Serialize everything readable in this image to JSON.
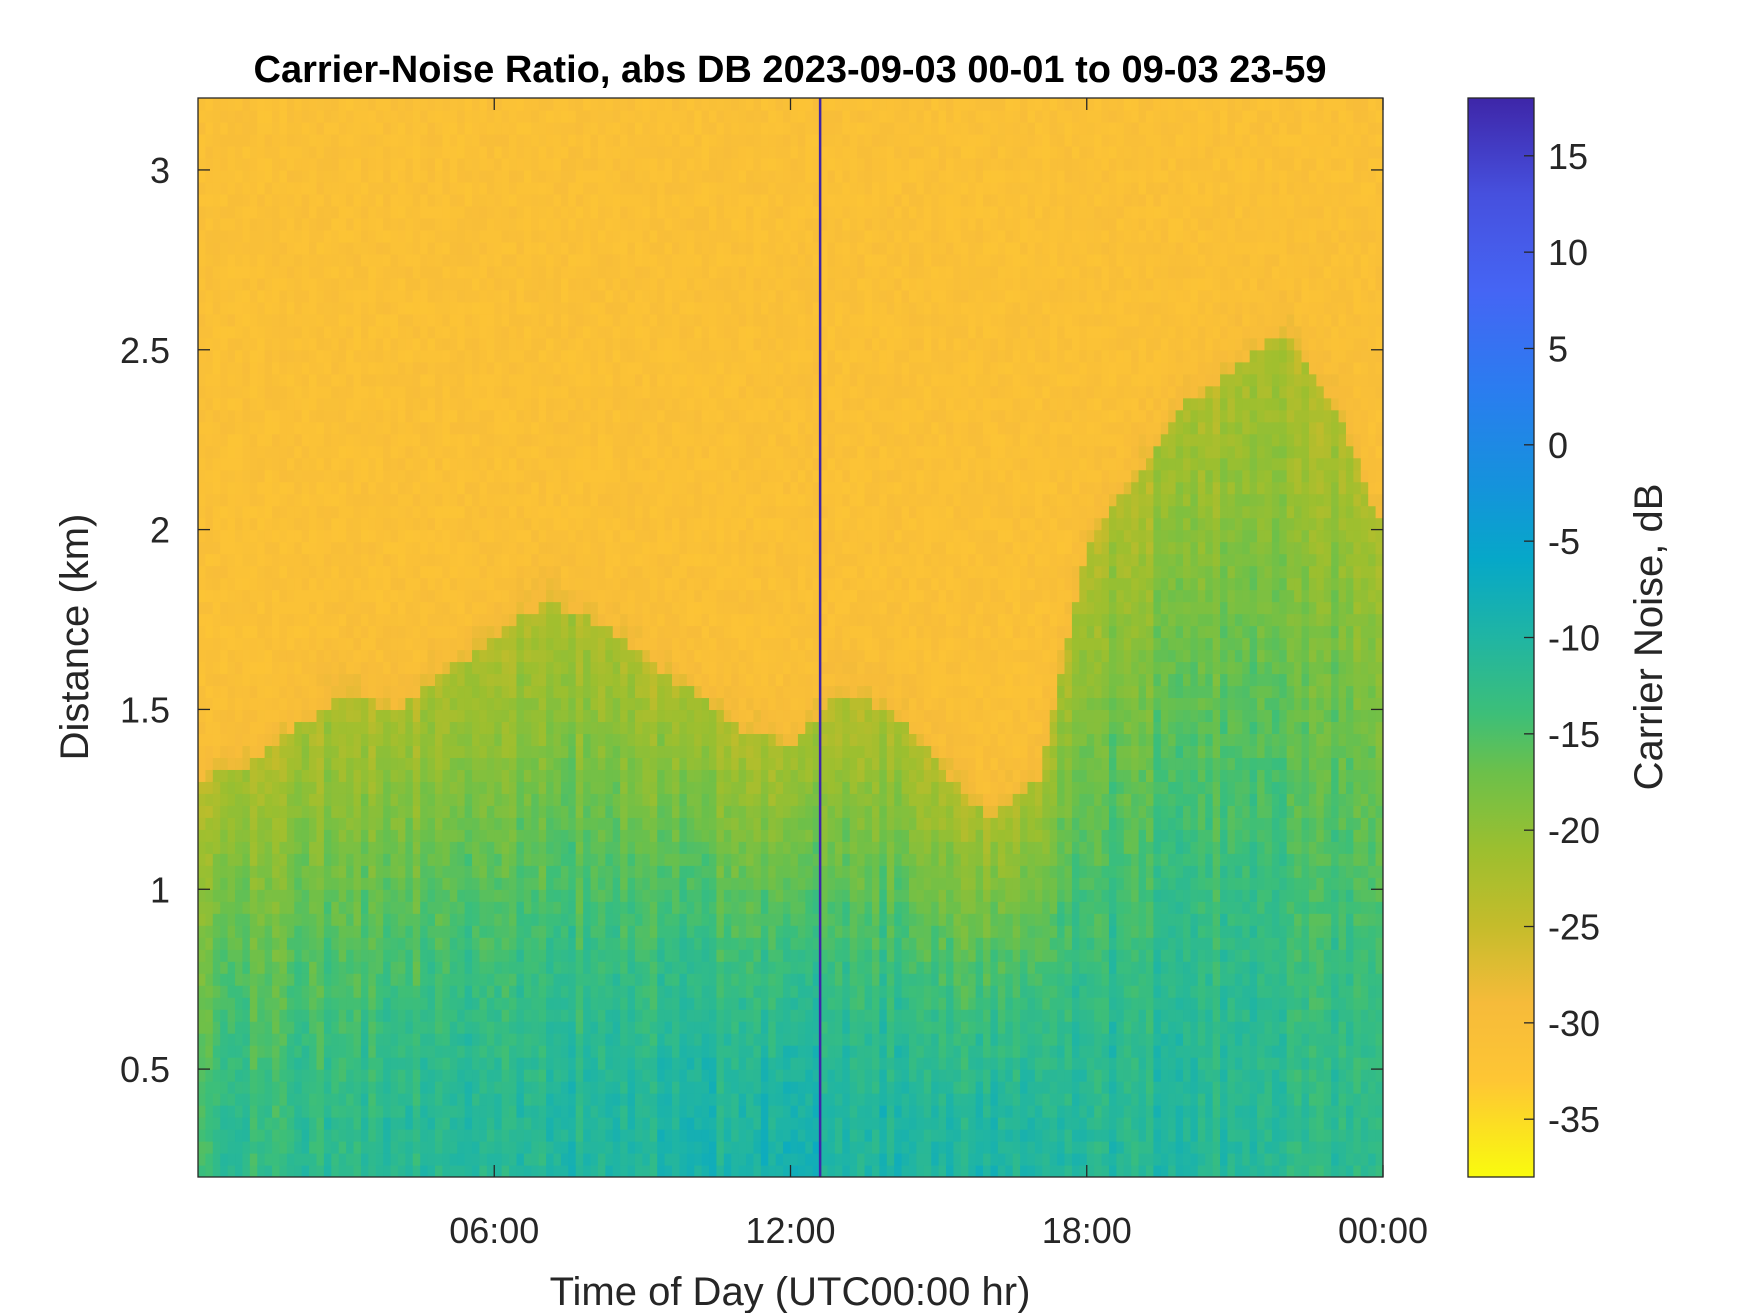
{
  "chart_data": {
    "type": "heatmap",
    "title": "Carrier-Noise Ratio, abs DB 2023-09-03 00-01 to 09-03 23-59",
    "xlabel": "Time of Day (UTC00:00 hr)",
    "ylabel": "Distance (km)",
    "colorbar_label": "Carrier Noise, dB",
    "x_range_hours": [
      0.0,
      24.0
    ],
    "x_ticks": [
      {
        "value": 6,
        "label": "06:00"
      },
      {
        "value": 12,
        "label": "12:00"
      },
      {
        "value": 18,
        "label": "18:00"
      },
      {
        "value": 24,
        "label": "00:00"
      }
    ],
    "y_range_km": [
      0.2,
      3.2
    ],
    "y_ticks": [
      {
        "value": 0.5,
        "label": "0.5"
      },
      {
        "value": 1.0,
        "label": "1"
      },
      {
        "value": 1.5,
        "label": "1.5"
      },
      {
        "value": 2.0,
        "label": "2"
      },
      {
        "value": 2.5,
        "label": "2.5"
      },
      {
        "value": 3.0,
        "label": "3"
      }
    ],
    "colorbar_range_db": [
      -38,
      18
    ],
    "colorbar_ticks": [
      {
        "value": -35,
        "label": "-35"
      },
      {
        "value": -30,
        "label": "-30"
      },
      {
        "value": -25,
        "label": "-25"
      },
      {
        "value": -20,
        "label": "-20"
      },
      {
        "value": -15,
        "label": "-15"
      },
      {
        "value": -10,
        "label": "-10"
      },
      {
        "value": -5,
        "label": "-5"
      },
      {
        "value": 0,
        "label": "0"
      },
      {
        "value": 5,
        "label": "5"
      },
      {
        "value": 10,
        "label": "10"
      },
      {
        "value": 15,
        "label": "15"
      }
    ],
    "colormap": "parula (reversed: yellow = low, dark blue = high)",
    "noise_floor_db": -31,
    "boundary_layer_top_km": [
      {
        "time_hr": 0.0,
        "km": 1.3
      },
      {
        "time_hr": 1.0,
        "km": 1.35
      },
      {
        "time_hr": 2.0,
        "km": 1.45
      },
      {
        "time_hr": 3.0,
        "km": 1.55
      },
      {
        "time_hr": 4.0,
        "km": 1.5
      },
      {
        "time_hr": 5.0,
        "km": 1.6
      },
      {
        "time_hr": 6.0,
        "km": 1.7
      },
      {
        "time_hr": 7.0,
        "km": 1.8
      },
      {
        "time_hr": 8.0,
        "km": 1.75
      },
      {
        "time_hr": 9.0,
        "km": 1.65
      },
      {
        "time_hr": 10.0,
        "km": 1.55
      },
      {
        "time_hr": 11.0,
        "km": 1.45
      },
      {
        "time_hr": 12.0,
        "km": 1.4
      },
      {
        "time_hr": 13.0,
        "km": 1.55
      },
      {
        "time_hr": 14.0,
        "km": 1.5
      },
      {
        "time_hr": 15.0,
        "km": 1.35
      },
      {
        "time_hr": 16.0,
        "km": 1.2
      },
      {
        "time_hr": 17.0,
        "km": 1.3
      },
      {
        "time_hr": 18.0,
        "km": 1.95
      },
      {
        "time_hr": 19.0,
        "km": 2.15
      },
      {
        "time_hr": 20.0,
        "km": 2.35
      },
      {
        "time_hr": 21.0,
        "km": 2.45
      },
      {
        "time_hr": 22.0,
        "km": 2.55
      },
      {
        "time_hr": 23.0,
        "km": 2.35
      },
      {
        "time_hr": 24.0,
        "km": 2.0
      }
    ],
    "near_surface_peak_db": {
      "start": -13,
      "midday": -9,
      "evening": -12
    },
    "vertical_line_time_hr": 12.6,
    "color_stops": [
      {
        "db": -38,
        "color": "#f9fb0e"
      },
      {
        "db": -33,
        "color": "#fec634"
      },
      {
        "db": -29,
        "color": "#f6bb3a"
      },
      {
        "db": -25,
        "color": "#c5bc2b"
      },
      {
        "db": -21,
        "color": "#9cbf2f"
      },
      {
        "db": -17,
        "color": "#6cc04a"
      },
      {
        "db": -14,
        "color": "#3dbf78"
      },
      {
        "db": -10,
        "color": "#20b5a3"
      },
      {
        "db": -6,
        "color": "#06a8c8"
      },
      {
        "db": -2,
        "color": "#1592dc"
      },
      {
        "db": 3,
        "color": "#2b7cf0"
      },
      {
        "db": 8,
        "color": "#4565f4"
      },
      {
        "db": 13,
        "color": "#4650de"
      },
      {
        "db": 18,
        "color": "#3e26a8"
      }
    ]
  }
}
